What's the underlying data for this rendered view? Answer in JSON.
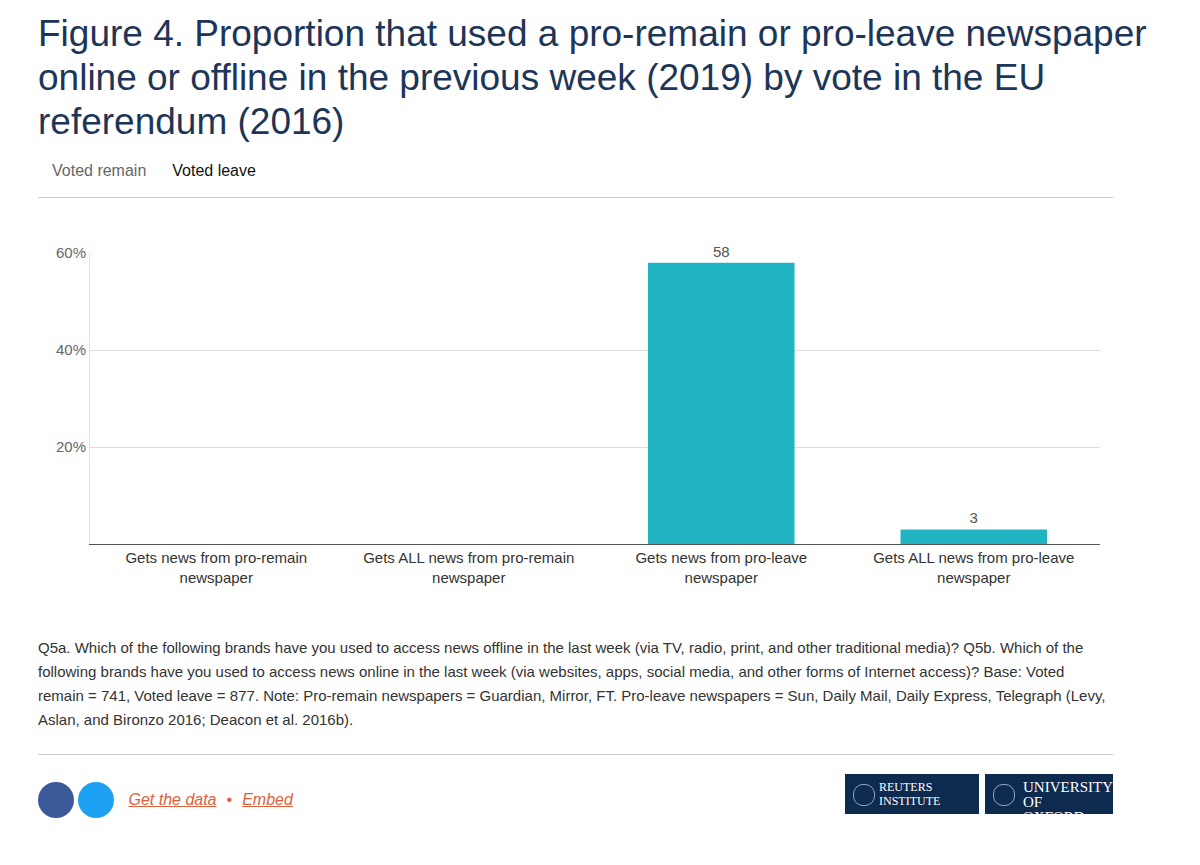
{
  "chart_data": {
    "type": "bar",
    "title": "Figure 4. Proportion that used a pro-remain or pro-leave newspaper online or offline in the previous week (2019) by vote in the EU referendum (2016)",
    "tabs": {
      "items": [
        "Voted remain",
        "Voted leave"
      ],
      "active": "Voted leave"
    },
    "categories": [
      "Gets news from pro-remain newspaper",
      "Gets ALL news from pro-remain newspaper",
      "Gets news from pro-leave newspaper",
      "Gets ALL news from pro-leave newspaper"
    ],
    "series": [
      {
        "name": "Voted leave",
        "color": "#20b3c1",
        "values": [
          null,
          null,
          58,
          3
        ]
      }
    ],
    "ylim": [
      0,
      60
    ],
    "yticks": [
      {
        "value": 20,
        "label": "20%"
      },
      {
        "value": 40,
        "label": "40%"
      },
      {
        "value": 60,
        "label": "60%"
      }
    ],
    "grid": true,
    "data_labels": true,
    "note": "Q5a. Which of the following brands have you used to access news offline in the last week (via TV, radio, print, and other traditional media)? Q5b. Which of the following brands have you used to access news online in the last week (via websites, apps, social media, and other forms of Internet access)? Base: Voted remain = 741, Voted leave = 877. Note: Pro-remain newspapers = Guardian, Mirror, FT. Pro-leave newspapers = Sun, Daily Mail, Daily Express, Telegraph (Levy, Aslan, and Bironzo 2016; Deacon et al. 2016b).",
    "footer": {
      "links": [
        "Get the data",
        "Embed"
      ],
      "separator": "•",
      "logos": [
        "REUTERS INSTITUTE",
        "UNIVERSITY OF OXFORD"
      ]
    }
  }
}
